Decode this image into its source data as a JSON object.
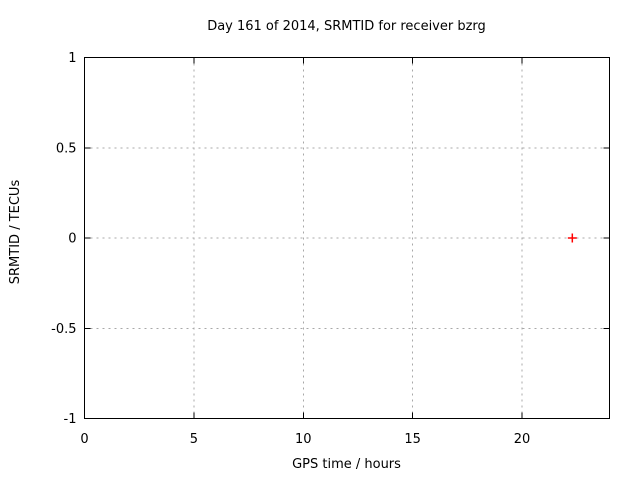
{
  "chart_data": {
    "type": "scatter",
    "title": "Day 161 of 2014, SRMTID for receiver bzrg",
    "xlabel": "GPS time / hours",
    "ylabel": "SRMTID / TECUs",
    "xlim": [
      0,
      24
    ],
    "ylim": [
      -1,
      1
    ],
    "xticks": [
      0,
      5,
      10,
      15,
      20
    ],
    "xtick_labels": [
      "0",
      "5",
      "10",
      "15",
      "20"
    ],
    "yticks": [
      -1,
      -0.5,
      0,
      0.5,
      1
    ],
    "ytick_labels": [
      "-1",
      "-0.5",
      "0",
      "0.5",
      "1"
    ],
    "grid": true,
    "legend_position": "none",
    "series": [
      {
        "name": "SRMTID",
        "marker": "plus",
        "color": "#ff0000",
        "points": [
          [
            22.3,
            0.0
          ]
        ]
      }
    ],
    "colors": {
      "background": "#ffffff",
      "border": "#000000",
      "grid": "#a8a8a8",
      "text": "#000000"
    }
  }
}
